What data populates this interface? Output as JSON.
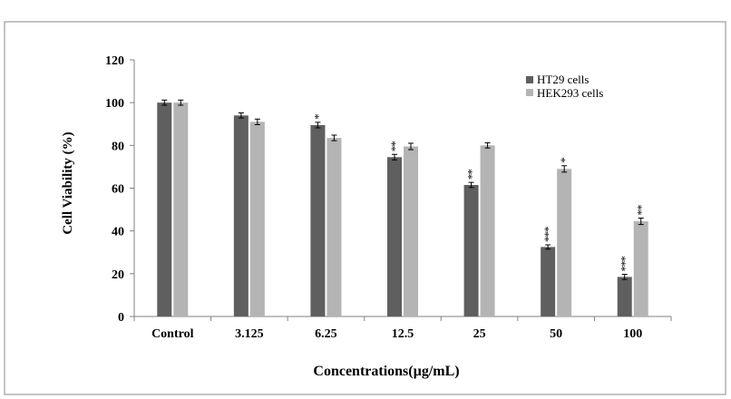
{
  "chart_data": {
    "type": "bar",
    "title": "",
    "xlabel": "Concentrations(µg/mL)",
    "ylabel": "Cell Viability (%)",
    "ylim": [
      0,
      120
    ],
    "yticks": [
      0,
      20,
      40,
      60,
      80,
      100,
      120
    ],
    "categories": [
      "Control",
      "3.125",
      "6.25",
      "12.5",
      "25",
      "50",
      "100"
    ],
    "series": [
      {
        "name": "HT29 cells",
        "color": "#5f5f5f",
        "values": [
          100,
          94,
          89.5,
          74.5,
          61.5,
          32.5,
          18.5
        ],
        "errors": [
          1.2,
          1.2,
          1.3,
          1.3,
          1.2,
          1.0,
          1.2
        ],
        "significance": [
          "",
          "",
          "*",
          "**",
          "**",
          "***",
          "***"
        ]
      },
      {
        "name": "HEK293 cells",
        "color": "#b4b4b4",
        "values": [
          100,
          91,
          83.5,
          79.5,
          80,
          69,
          44.5
        ],
        "errors": [
          1.2,
          1.3,
          1.3,
          1.5,
          1.2,
          1.5,
          1.5
        ],
        "significance": [
          "",
          "",
          "",
          "",
          "",
          "*",
          "**"
        ]
      }
    ],
    "legend": "top-right",
    "grid": false
  }
}
